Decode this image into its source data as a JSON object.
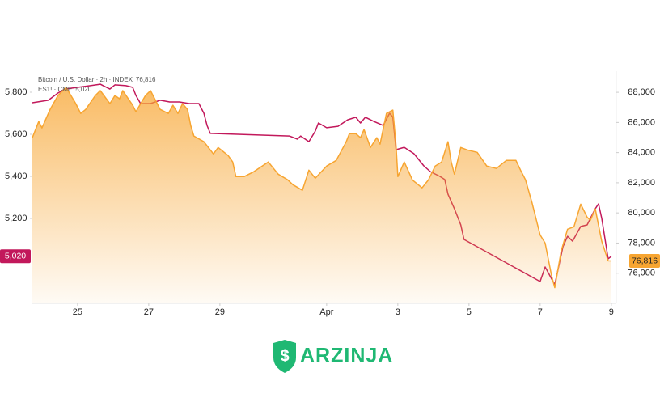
{
  "chart_data": {
    "type": "line",
    "xlim": [
      23.73,
      40.14
    ],
    "xticks": [
      25,
      27,
      29,
      {
        "value": 32,
        "label": "Apr"
      },
      {
        "value": 34,
        "label": "3"
      },
      {
        "value": 36,
        "label": "5"
      },
      {
        "value": 38,
        "label": "7"
      },
      {
        "value": 40,
        "label": "9"
      }
    ],
    "ylim": [
      4796,
      5900
    ],
    "yticks": [
      {
        "value": 5200,
        "label": "5,200"
      },
      {
        "value": 5400,
        "label": "5,400"
      },
      {
        "value": 5600,
        "label": "5,600"
      },
      {
        "value": 5800,
        "label": "5,800"
      }
    ],
    "y2lim": [
      74000,
      89400
    ],
    "y2ticks": [
      {
        "value": 76000,
        "label": "76,000"
      },
      {
        "value": 78000,
        "label": "78,000"
      },
      {
        "value": 80000,
        "label": "80,000"
      },
      {
        "value": 82000,
        "label": "82,000"
      },
      {
        "value": 84000,
        "label": "84,000"
      },
      {
        "value": 86000,
        "label": "86,000"
      },
      {
        "value": 88000,
        "label": "88,000"
      }
    ],
    "series": [
      {
        "name": "Bitcoin / U.S. Dollar · 2h · INDEX",
        "color": "#f7a531",
        "axis": "y2",
        "area": true,
        "last_value_label": "76,816",
        "x": [
          23.73,
          23.91,
          24.0,
          24.23,
          24.45,
          24.68,
          24.95,
          25.09,
          25.23,
          25.5,
          25.64,
          25.91,
          26.05,
          26.18,
          26.27,
          26.55,
          26.64,
          26.91,
          27.05,
          27.32,
          27.55,
          27.68,
          27.82,
          27.95,
          28.09,
          28.18,
          28.27,
          28.55,
          28.82,
          28.95,
          29.23,
          29.36,
          29.45,
          29.68,
          29.95,
          30.36,
          30.64,
          30.91,
          31.05,
          31.32,
          31.5,
          31.68,
          32.0,
          32.27,
          32.55,
          32.64,
          32.82,
          32.95,
          33.05,
          33.23,
          33.41,
          33.5,
          33.68,
          33.86,
          33.95,
          34.0,
          34.18,
          34.41,
          34.68,
          34.86,
          35.05,
          35.23,
          35.41,
          35.5,
          35.59,
          35.77,
          35.95,
          36.23,
          36.5,
          36.77,
          37.05,
          37.32,
          37.45,
          37.59,
          37.77,
          38.0,
          38.14,
          38.32,
          38.41,
          38.59,
          38.77,
          38.95,
          39.14,
          39.32,
          39.41,
          39.55,
          39.73,
          39.91,
          40.0
        ],
        "values": [
          84990,
          86065,
          85640,
          86870,
          87790,
          88320,
          87250,
          86600,
          86870,
          87790,
          88110,
          87250,
          87790,
          87570,
          88110,
          87140,
          86710,
          87790,
          88110,
          86870,
          86600,
          87140,
          86600,
          87250,
          86870,
          85800,
          85100,
          84720,
          83910,
          84340,
          83810,
          83380,
          82410,
          82410,
          82730,
          83380,
          82570,
          82190,
          81870,
          81500,
          82840,
          82300,
          83110,
          83480,
          84720,
          85260,
          85260,
          84990,
          85530,
          84340,
          84990,
          84560,
          86600,
          86820,
          84450,
          82410,
          83380,
          82190,
          81660,
          82190,
          83110,
          83380,
          84720,
          83380,
          82570,
          84340,
          84180,
          84020,
          83110,
          82950,
          83480,
          83480,
          82840,
          82190,
          80690,
          78540,
          78000,
          75850,
          75040,
          77460,
          78920,
          79080,
          80580,
          79720,
          79510,
          80260,
          78110,
          76820,
          76816
        ]
      },
      {
        "name": "ES1! · CME",
        "color": "#c2185b",
        "axis": "y",
        "area": false,
        "last_value_label": "5,020",
        "x": [
          23.73,
          24.18,
          24.45,
          24.64,
          25.0,
          25.36,
          25.64,
          25.91,
          26.05,
          26.36,
          26.55,
          26.64,
          26.77,
          27.05,
          27.32,
          27.59,
          27.86,
          28.14,
          28.41,
          28.55,
          28.64,
          28.73,
          30.95,
          31.18,
          31.27,
          31.5,
          31.68,
          31.77,
          32.0,
          32.32,
          32.59,
          32.82,
          32.95,
          33.09,
          33.32,
          33.59,
          33.77,
          33.86,
          33.95,
          34.18,
          34.45,
          34.73,
          34.91,
          35.18,
          35.32,
          35.41,
          35.59,
          35.77,
          35.86,
          38.0,
          38.14,
          38.41,
          38.64,
          38.77,
          38.91,
          39.14,
          39.32,
          39.55,
          39.64,
          39.73,
          39.91,
          40.0
        ],
        "values": [
          5750,
          5762,
          5796,
          5815,
          5823,
          5831,
          5838,
          5815,
          5835,
          5831,
          5823,
          5785,
          5746,
          5746,
          5762,
          5754,
          5754,
          5746,
          5746,
          5700,
          5642,
          5604,
          5592,
          5577,
          5592,
          5565,
          5615,
          5654,
          5631,
          5638,
          5669,
          5681,
          5654,
          5681,
          5662,
          5642,
          5700,
          5681,
          5527,
          5538,
          5508,
          5450,
          5423,
          5400,
          5385,
          5315,
          5246,
          5169,
          5100,
          4900,
          4969,
          4885,
          5065,
          5115,
          5092,
          5162,
          5169,
          5246,
          5269,
          5200,
          5008,
          5020
        ]
      }
    ]
  },
  "logo": {
    "text": "ARZINJA"
  }
}
